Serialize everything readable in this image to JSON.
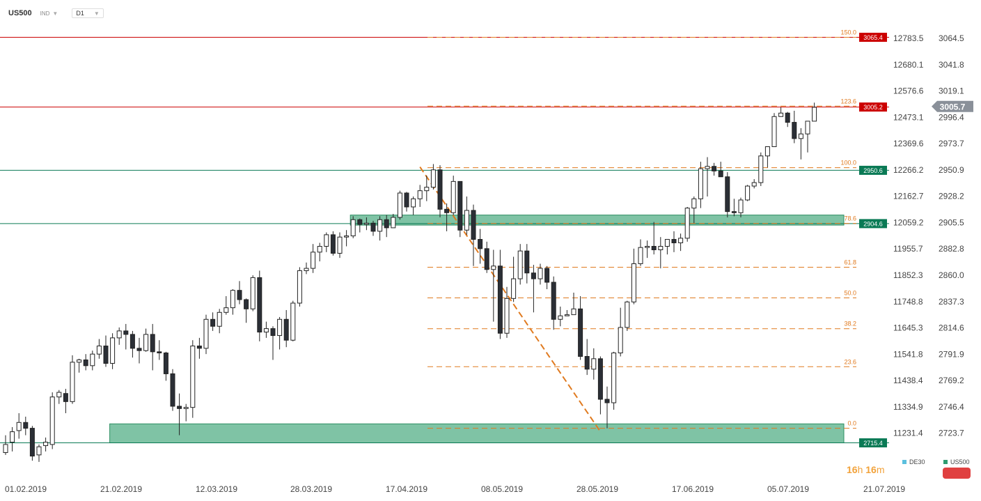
{
  "toolbar": {
    "symbol": "US500",
    "market": "IND",
    "timeframe": "D1"
  },
  "timer": {
    "hours": "16",
    "h": "h",
    "minutes": "16",
    "m": "m"
  },
  "legend": [
    {
      "label": "DE30",
      "color": "#5bc0de"
    },
    {
      "label": "US500",
      "color": "#2e9c70"
    }
  ],
  "chart_data": {
    "type": "candlestick",
    "x_dates": [
      "01.02.2019",
      "21.02.2019",
      "12.03.2019",
      "28.03.2019",
      "17.04.2019",
      "08.05.2019",
      "28.05.2019",
      "17.06.2019",
      "05.07.2019",
      "21.07.2019"
    ],
    "y_right_ticks": [
      "3064.5",
      "3041.8",
      "3019.1",
      "2996.4",
      "2973.7",
      "2950.9",
      "2928.2",
      "2905.5",
      "2882.8",
      "2860.0",
      "2837.3",
      "2814.6",
      "2791.9",
      "2769.2",
      "2746.4",
      "2723.7"
    ],
    "y_left_ticks": [
      "12783.5",
      "12680.1",
      "12576.6",
      "12473.1",
      "12369.6",
      "12266.2",
      "12162.7",
      "12059.2",
      "11955.7",
      "11852.3",
      "11748.8",
      "11645.3",
      "11541.8",
      "11438.4",
      "11334.9",
      "11231.4"
    ],
    "ylim": [
      2705,
      3075
    ],
    "current_price": {
      "label": "3005.7",
      "value": 3005.7
    },
    "horizontal_lines": [
      {
        "label": "3065.4",
        "value": 3065.4,
        "color": "#cc0000"
      },
      {
        "label": "3005.2",
        "value": 3005.2,
        "color": "#cc0000"
      },
      {
        "label": "2950.6",
        "value": 2950.6,
        "color": "#0a7a55"
      },
      {
        "label": "2904.6",
        "value": 2904.6,
        "color": "#0a7a55"
      },
      {
        "label": "2715.4",
        "value": 2715.4,
        "color": "#0a7a55"
      }
    ],
    "fibonacci": [
      {
        "label": "150.0",
        "value": 3065.4
      },
      {
        "label": "123.6",
        "value": 3006.0
      },
      {
        "label": "100.0",
        "value": 2952.9
      },
      {
        "label": "78.6",
        "value": 2904.8
      },
      {
        "label": "61.8",
        "value": 2867.0
      },
      {
        "label": "50.0",
        "value": 2840.5
      },
      {
        "label": "38.2",
        "value": 2813.9
      },
      {
        "label": "23.6",
        "value": 2781.1
      },
      {
        "label": "0.0",
        "value": 2728.0
      }
    ],
    "zones": [
      {
        "from_index": 52,
        "to_index": 125,
        "low": 2903.3,
        "high": 2912.0
      },
      {
        "from_index": 16,
        "to_index": 125,
        "low": 2715.4,
        "high": 2731.8
      }
    ],
    "trendline": {
      "from_index": 62,
      "from_value": 2953.5,
      "to_index": 89,
      "to_value": 2725.0
    },
    "candles": [
      [
        2707,
        2722,
        2705,
        2714
      ],
      [
        2716,
        2729,
        2708,
        2725
      ],
      [
        2726,
        2741,
        2719,
        2733
      ],
      [
        2733,
        2738,
        2722,
        2728
      ],
      [
        2728,
        2730,
        2700,
        2704
      ],
      [
        2705,
        2714,
        2699,
        2712
      ],
      [
        2713,
        2720,
        2708,
        2716
      ],
      [
        2714,
        2759,
        2710,
        2755
      ],
      [
        2755,
        2761,
        2749,
        2759
      ],
      [
        2758,
        2762,
        2741,
        2751
      ],
      [
        2751,
        2791,
        2749,
        2785
      ],
      [
        2785,
        2788,
        2776,
        2787
      ],
      [
        2787,
        2792,
        2778,
        2782
      ],
      [
        2782,
        2795,
        2778,
        2792
      ],
      [
        2792,
        2805,
        2788,
        2799
      ],
      [
        2799,
        2808,
        2781,
        2784
      ],
      [
        2784,
        2810,
        2779,
        2806
      ],
      [
        2806,
        2815,
        2800,
        2812
      ],
      [
        2812,
        2818,
        2796,
        2809
      ],
      [
        2809,
        2812,
        2789,
        2797
      ],
      [
        2797,
        2806,
        2784,
        2795
      ],
      [
        2795,
        2814,
        2794,
        2809
      ],
      [
        2809,
        2818,
        2778,
        2794
      ],
      [
        2794,
        2804,
        2787,
        2793
      ],
      [
        2793,
        2794,
        2769,
        2775
      ],
      [
        2775,
        2779,
        2743,
        2747
      ],
      [
        2747,
        2758,
        2722,
        2745
      ],
      [
        2745,
        2749,
        2734,
        2746
      ],
      [
        2746,
        2804,
        2737,
        2799
      ],
      [
        2799,
        2806,
        2788,
        2797
      ],
      [
        2797,
        2826,
        2792,
        2822
      ],
      [
        2822,
        2828,
        2812,
        2816
      ],
      [
        2816,
        2831,
        2810,
        2828
      ],
      [
        2828,
        2842,
        2826,
        2832
      ],
      [
        2832,
        2848,
        2826,
        2847
      ],
      [
        2847,
        2855,
        2835,
        2839
      ],
      [
        2839,
        2840,
        2819,
        2831
      ],
      [
        2831,
        2860,
        2829,
        2858
      ],
      [
        2858,
        2864,
        2803,
        2811
      ],
      [
        2811,
        2820,
        2806,
        2814
      ],
      [
        2814,
        2816,
        2787,
        2808
      ],
      [
        2808,
        2824,
        2796,
        2822
      ],
      [
        2822,
        2830,
        2798,
        2804
      ],
      [
        2804,
        2838,
        2803,
        2836
      ],
      [
        2836,
        2867,
        2833,
        2864
      ],
      [
        2864,
        2871,
        2861,
        2866
      ],
      [
        2866,
        2887,
        2862,
        2880
      ],
      [
        2880,
        2888,
        2872,
        2885
      ],
      [
        2885,
        2897,
        2880,
        2895
      ],
      [
        2895,
        2898,
        2877,
        2879
      ],
      [
        2879,
        2897,
        2875,
        2893
      ],
      [
        2893,
        2899,
        2885,
        2894
      ],
      [
        2894,
        2911,
        2892,
        2908
      ],
      [
        2908,
        2909,
        2897,
        2904
      ],
      [
        2904,
        2910,
        2899,
        2905
      ],
      [
        2905,
        2907,
        2894,
        2898
      ],
      [
        2898,
        2911,
        2890,
        2908
      ],
      [
        2908,
        2912,
        2893,
        2901
      ],
      [
        2901,
        2913,
        2901,
        2910
      ],
      [
        2910,
        2933,
        2908,
        2931
      ],
      [
        2931,
        2932,
        2915,
        2919
      ],
      [
        2919,
        2928,
        2912,
        2926
      ],
      [
        2926,
        2938,
        2919,
        2933
      ],
      [
        2933,
        2946,
        2924,
        2936
      ],
      [
        2936,
        2956,
        2934,
        2951
      ],
      [
        2951,
        2955,
        2910,
        2917
      ],
      [
        2917,
        2922,
        2898,
        2914
      ],
      [
        2914,
        2946,
        2912,
        2941
      ],
      [
        2941,
        2941,
        2893,
        2899
      ],
      [
        2899,
        2928,
        2895,
        2916
      ],
      [
        2916,
        2921,
        2868,
        2891
      ],
      [
        2891,
        2900,
        2870,
        2883
      ],
      [
        2883,
        2889,
        2862,
        2865
      ],
      [
        2865,
        2882,
        2820,
        2868
      ],
      [
        2868,
        2882,
        2805,
        2810
      ],
      [
        2810,
        2850,
        2806,
        2840
      ],
      [
        2840,
        2876,
        2837,
        2857
      ],
      [
        2857,
        2887,
        2852,
        2881
      ],
      [
        2881,
        2887,
        2853,
        2862
      ],
      [
        2862,
        2869,
        2828,
        2857
      ],
      [
        2857,
        2870,
        2852,
        2866
      ],
      [
        2866,
        2868,
        2848,
        2854
      ],
      [
        2854,
        2859,
        2813,
        2822
      ],
      [
        2822,
        2833,
        2816,
        2825
      ],
      [
        2825,
        2830,
        2825,
        2826
      ],
      [
        2826,
        2845,
        2826,
        2831
      ],
      [
        2831,
        2842,
        2787,
        2790
      ],
      [
        2790,
        2805,
        2774,
        2779
      ],
      [
        2779,
        2797,
        2770,
        2788
      ],
      [
        2788,
        2790,
        2740,
        2753
      ],
      [
        2753,
        2764,
        2728,
        2750
      ],
      [
        2750,
        2794,
        2744,
        2793
      ],
      [
        2793,
        2832,
        2790,
        2815
      ],
      [
        2815,
        2838,
        2812,
        2837
      ],
      [
        2837,
        2883,
        2835,
        2870
      ],
      [
        2870,
        2891,
        2868,
        2884
      ],
      [
        2884,
        2890,
        2875,
        2885
      ],
      [
        2885,
        2906,
        2878,
        2882
      ],
      [
        2882,
        2893,
        2866,
        2885
      ],
      [
        2885,
        2890,
        2878,
        2891
      ],
      [
        2891,
        2898,
        2880,
        2888
      ],
      [
        2888,
        2896,
        2881,
        2892
      ],
      [
        2892,
        2919,
        2889,
        2918
      ],
      [
        2918,
        2928,
        2905,
        2926
      ],
      [
        2926,
        2958,
        2918,
        2952
      ],
      [
        2952,
        2962,
        2928,
        2954
      ],
      [
        2954,
        2957,
        2946,
        2950
      ],
      [
        2950,
        2958,
        2945,
        2945
      ],
      [
        2945,
        2949,
        2910,
        2915
      ],
      [
        2915,
        2926,
        2911,
        2914
      ],
      [
        2914,
        2927,
        2910,
        2925
      ],
      [
        2925,
        2938,
        2924,
        2937
      ],
      [
        2937,
        2943,
        2935,
        2940
      ],
      [
        2940,
        2966,
        2937,
        2963
      ],
      [
        2963,
        2968,
        2953,
        2971
      ],
      [
        2971,
        3000,
        2971,
        2997
      ],
      [
        2997,
        3005,
        2997,
        3000
      ],
      [
        3000,
        3001,
        2988,
        2992
      ],
      [
        2992,
        3002,
        2974,
        2978
      ],
      [
        2978,
        2987,
        2960,
        2982
      ],
      [
        2982,
        2990,
        2966,
        2993
      ],
      [
        2993,
        3009,
        2993,
        3005
      ]
    ]
  }
}
